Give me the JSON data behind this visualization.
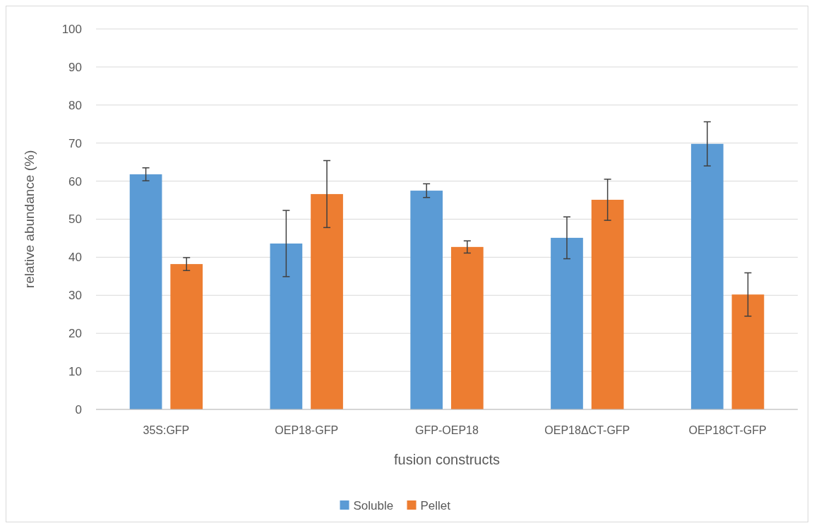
{
  "chart_data": {
    "type": "bar",
    "xlabel": "fusion constructs",
    "ylabel": "relative abundance (%)",
    "categories": [
      "35S:GFP",
      "OEP18-GFP",
      "GFP-OEP18",
      "OEP18ΔCT-GFP",
      "OEP18CT-GFP"
    ],
    "series": [
      {
        "name": "Soluble",
        "color": "#5b9bd5",
        "values": [
          61.8,
          43.6,
          57.5,
          45.1,
          69.8
        ],
        "errors": [
          1.7,
          8.7,
          1.8,
          5.5,
          5.8
        ]
      },
      {
        "name": "Pellet",
        "color": "#ed7d31",
        "values": [
          38.2,
          56.6,
          42.7,
          55.1,
          30.2
        ],
        "errors": [
          1.7,
          8.8,
          1.6,
          5.4,
          5.7
        ]
      }
    ],
    "ylim": [
      0,
      100
    ],
    "yticks": [
      0,
      10,
      20,
      30,
      40,
      50,
      60,
      70,
      80,
      90,
      100
    ],
    "grid": "y",
    "legend": "bottom"
  }
}
